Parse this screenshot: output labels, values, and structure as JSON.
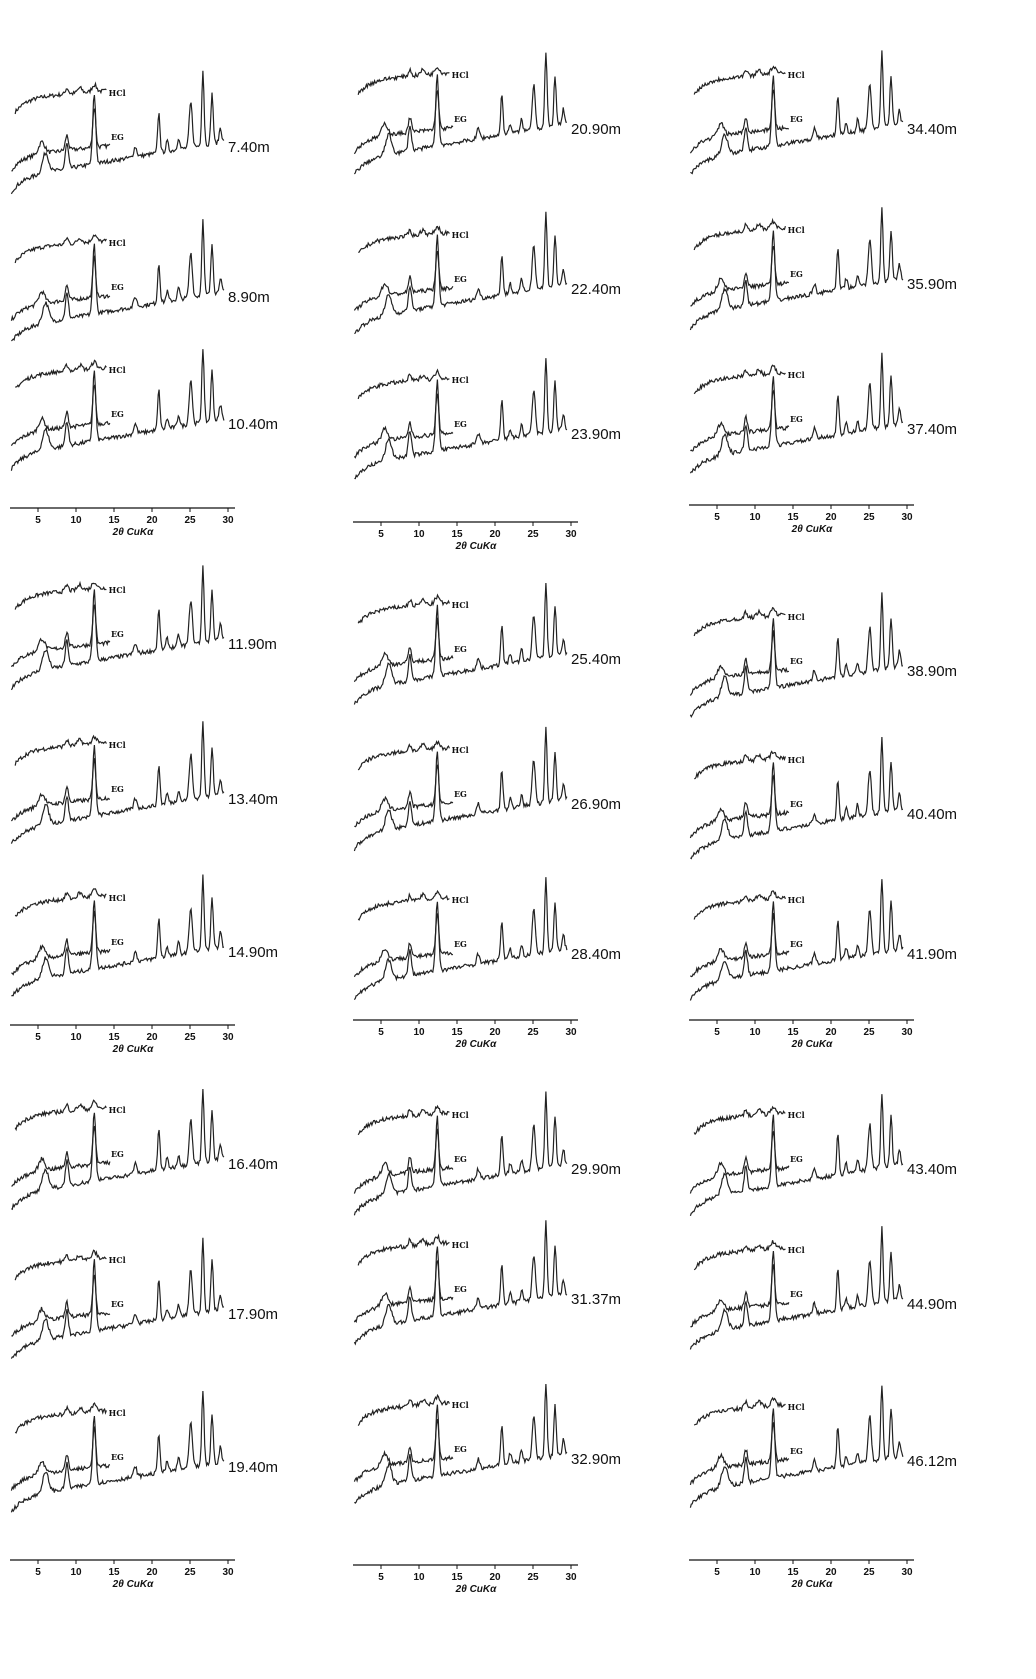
{
  "trace_labels": {
    "hcl": "HCl",
    "eg": "EG"
  },
  "axis": {
    "ticks": [
      5,
      10,
      15,
      20,
      25,
      30
    ],
    "label": "2θ CuKα"
  },
  "panels": [
    {
      "samples": [
        {
          "depth": "7.40m"
        },
        {
          "depth": "8.90m"
        },
        {
          "depth": "10.40m"
        }
      ]
    },
    {
      "samples": [
        {
          "depth": "11.90m"
        },
        {
          "depth": "13.40m"
        },
        {
          "depth": "14.90m"
        }
      ]
    },
    {
      "samples": [
        {
          "depth": "16.40m"
        },
        {
          "depth": "17.90m"
        },
        {
          "depth": "19.40m"
        }
      ]
    },
    {
      "samples": [
        {
          "depth": "20.90m"
        },
        {
          "depth": "22.40m"
        },
        {
          "depth": "23.90m"
        }
      ]
    },
    {
      "samples": [
        {
          "depth": "25.40m"
        },
        {
          "depth": "26.90m"
        },
        {
          "depth": "28.40m"
        }
      ]
    },
    {
      "samples": [
        {
          "depth": "29.90m"
        },
        {
          "depth": "31.37m"
        },
        {
          "depth": "32.90m"
        }
      ]
    },
    {
      "samples": [
        {
          "depth": "34.40m"
        },
        {
          "depth": "35.90m"
        },
        {
          "depth": "37.40m"
        }
      ]
    },
    {
      "samples": [
        {
          "depth": "38.90m"
        },
        {
          "depth": "40.40m"
        },
        {
          "depth": "41.90m"
        }
      ]
    },
    {
      "samples": [
        {
          "depth": "43.40m"
        },
        {
          "depth": "44.90m"
        },
        {
          "depth": "46.12m"
        }
      ]
    }
  ]
}
